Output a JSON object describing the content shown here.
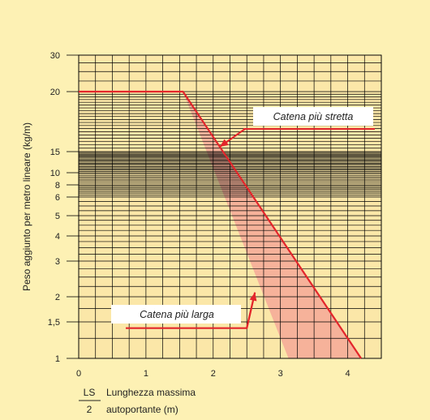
{
  "colors": {
    "background": "#fdf1b4",
    "plot_area": "#fbe7a8",
    "grid": "#000000",
    "line": "#e3262b",
    "band": "#f4a898"
  },
  "chart_data": {
    "type": "line",
    "ylabel": "Peso aggiunto per metro lineare (kg/m)",
    "xlabel_ls": "LS",
    "xlabel_2": "2",
    "xlabel_line1": "Lunghezza massima",
    "xlabel_line2": "autoportante (m)",
    "x_ticks": [
      "0",
      "1",
      "2",
      "3",
      "4"
    ],
    "y_ticks": [
      "1",
      "1,5",
      "2",
      "3",
      "4",
      "5",
      "6",
      "8",
      "10",
      "15",
      "20",
      "30"
    ],
    "xlim": [
      0,
      4.5
    ],
    "series": [
      {
        "name": "Catena più stretta",
        "x": [
          0,
          1.55,
          4.2
        ],
        "y": [
          20,
          20,
          1
        ]
      },
      {
        "name": "Catena più larga",
        "x": [
          0.7,
          2.5,
          2.62
        ],
        "y": [
          1.4,
          1.4,
          2.1
        ]
      }
    ],
    "band": {
      "x": [
        1.55,
        4.2,
        3.12
      ],
      "y": [
        20,
        1,
        1
      ]
    },
    "annotations": [
      {
        "text": "Catena più stretta",
        "series": 0
      },
      {
        "text": "Catena più larga",
        "series": 1
      }
    ]
  }
}
